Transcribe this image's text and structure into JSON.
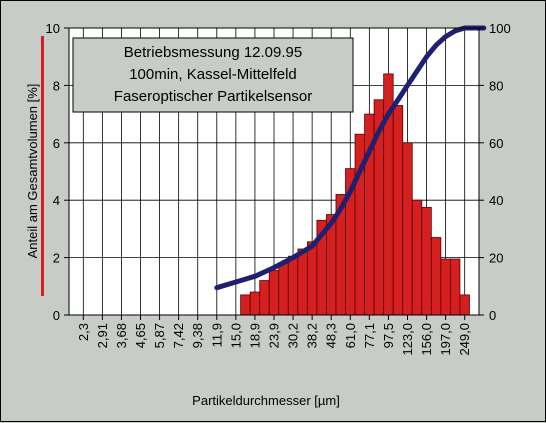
{
  "chart_data": {
    "type": "bar",
    "title_lines": [
      "Betriebsmessung 12.09.95",
      "100min,  Kassel-Mittelfeld",
      "Faseroptischer Partikelsensor"
    ],
    "xlabel": "Partikeldurchmesser [µm]",
    "ylabel": "Anteil am Gesamtvolumen [%]",
    "ylim": [
      0,
      10
    ],
    "y_ticks": [
      "0",
      "2",
      "4",
      "6",
      "8",
      "10"
    ],
    "y2lim": [
      0,
      100
    ],
    "y2_ticks": [
      "0",
      "20",
      "40",
      "60",
      "80",
      "100"
    ],
    "grid": true,
    "x_tick_labels": [
      "2,3",
      "2,91",
      "3,68",
      "4,65",
      "5,87",
      "7,42",
      "9,38",
      "11,9",
      "15,0",
      "18,9",
      "23,9",
      "30,2",
      "38,2",
      "48,3",
      "61,0",
      "77,1",
      "97,5",
      "123,0",
      "156,0",
      "197,0",
      "249,0"
    ],
    "bar_colors": {
      "fill": "#d42020",
      "edge": "#5a0000"
    },
    "curve_color": "#202070",
    "series": [
      {
        "kind": "bar",
        "values": [
          0.7,
          0.8,
          1.2,
          1.55,
          1.8,
          2.05,
          2.3,
          2.55,
          3.3,
          3.5,
          4.2,
          5.1,
          6.3,
          7.0,
          7.5,
          8.4,
          7.3,
          6.0,
          4.0,
          3.75,
          2.7,
          1.95,
          1.95,
          0.7
        ],
        "x_index": [
          8.5,
          9.0,
          9.5,
          10.0,
          10.5,
          11.0,
          11.5,
          12.0,
          12.5,
          13.0,
          13.5,
          14.0,
          14.5,
          15.0,
          15.5,
          16.0,
          16.5,
          17.0,
          17.5,
          18.0,
          18.5,
          19.0,
          19.5,
          20.0
        ]
      },
      {
        "kind": "cumulative-line",
        "axis": "right",
        "x_index": [
          7.0,
          8.0,
          9.0,
          10.0,
          11.0,
          12.0,
          12.5,
          13.0,
          13.5,
          14.0,
          14.5,
          15.0,
          15.5,
          16.0,
          16.5,
          17.0,
          17.5,
          18.0,
          18.5,
          19.0,
          19.5,
          20.0,
          21.0
        ],
        "values": [
          9.5,
          11.5,
          13.5,
          16.5,
          20.0,
          24.0,
          28.0,
          32.0,
          37.0,
          43.0,
          50.0,
          57.0,
          64.0,
          70.0,
          75.0,
          80.0,
          85.0,
          90.0,
          94.0,
          97.0,
          99.0,
          100.0,
          100.0
        ]
      }
    ]
  }
}
